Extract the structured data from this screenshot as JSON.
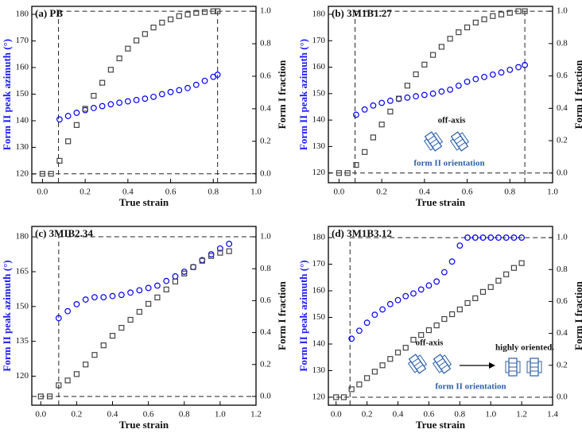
{
  "chart_data": [
    {
      "type": "scatter",
      "title": "(a) PB",
      "xlabel": "True strain",
      "ylabel": "Form II peak azimuth (°)",
      "y2label": "Form I fraction",
      "xlim": [
        -0.05,
        1.0
      ],
      "ylim": [
        116.7,
        183
      ],
      "y2lim": [
        -0.055,
        1.03
      ],
      "xticks": [
        {
          "value": 0,
          "label": "0.0"
        },
        {
          "value": 0.2,
          "label": "0.2"
        },
        {
          "value": 0.4,
          "label": "0.4"
        },
        {
          "value": 0.6,
          "label": "0.6"
        },
        {
          "value": 0.8,
          "label": "0.8"
        },
        {
          "value": 1,
          "label": "1.0"
        }
      ],
      "yticks": [
        120,
        130,
        140,
        150,
        160,
        170,
        180
      ],
      "y2ticks": [
        {
          "value": 0,
          "label": "0.0"
        },
        {
          "value": 0.2,
          "label": "0.2"
        },
        {
          "value": 0.4,
          "label": "0.4"
        },
        {
          "value": 0.6,
          "label": "0.6"
        },
        {
          "value": 0.8,
          "label": "0.8"
        },
        {
          "value": 1,
          "label": "1.0"
        }
      ],
      "ref_x": [
        0.075,
        0.82
      ],
      "ref_y2": [
        0,
        1
      ],
      "x": [
        0,
        0.04,
        0.08,
        0.12,
        0.16,
        0.2,
        0.24,
        0.28,
        0.32,
        0.36,
        0.4,
        0.44,
        0.48,
        0.52,
        0.56,
        0.6,
        0.64,
        0.68,
        0.72,
        0.76,
        0.8,
        0.82
      ],
      "series": [
        {
          "color": "#0000ff",
          "marker": "circle",
          "values": [
            null,
            null,
            140.5,
            141.8,
            143,
            144,
            144.8,
            145.5,
            146.2,
            146.8,
            147.3,
            147.8,
            148.3,
            149,
            150,
            150.8,
            151.5,
            152.3,
            153.5,
            155,
            156.5,
            157.3
          ]
        },
        {
          "color": "#444444",
          "marker": "square",
          "axis": "y2",
          "values": [
            0,
            0,
            0.08,
            0.2,
            0.3,
            0.4,
            0.48,
            0.56,
            0.64,
            0.71,
            0.77,
            0.82,
            0.86,
            0.9,
            0.93,
            0.95,
            0.97,
            0.98,
            0.99,
            0.995,
            1.0,
            1.0
          ]
        }
      ],
      "annotations": []
    },
    {
      "type": "scatter",
      "title": "(b) 3M1B1.27",
      "xlabel": "True strain",
      "ylabel": "Form II peak azimuth (°)",
      "y2label": "Form I fraction",
      "xlim": [
        -0.05,
        1.0
      ],
      "ylim": [
        116.3,
        183
      ],
      "y2lim": [
        -0.06,
        1.03
      ],
      "xticks": [
        {
          "value": 0,
          "label": "0.0"
        },
        {
          "value": 0.2,
          "label": "0.2"
        },
        {
          "value": 0.4,
          "label": "0.4"
        },
        {
          "value": 0.6,
          "label": "0.6"
        },
        {
          "value": 0.8,
          "label": "0.8"
        },
        {
          "value": 1,
          "label": "1.0"
        }
      ],
      "yticks": [
        120,
        130,
        140,
        150,
        160,
        170,
        180
      ],
      "y2ticks": [
        {
          "value": 0,
          "label": "0.0"
        },
        {
          "value": 0.2,
          "label": "0.2"
        },
        {
          "value": 0.4,
          "label": "0.4"
        },
        {
          "value": 0.6,
          "label": "0.6"
        },
        {
          "value": 0.8,
          "label": "0.8"
        },
        {
          "value": 1,
          "label": "1.0"
        }
      ],
      "ref_x": [
        0.075,
        0.87
      ],
      "ref_y2": [
        0,
        1
      ],
      "x": [
        0,
        0.04,
        0.08,
        0.12,
        0.16,
        0.2,
        0.24,
        0.28,
        0.32,
        0.36,
        0.4,
        0.44,
        0.48,
        0.52,
        0.56,
        0.6,
        0.64,
        0.68,
        0.72,
        0.76,
        0.8,
        0.84,
        0.87
      ],
      "series": [
        {
          "color": "#0000ff",
          "marker": "circle",
          "values": [
            null,
            null,
            142,
            144,
            145.5,
            146.5,
            147.3,
            148,
            148.5,
            149,
            149.5,
            150,
            150.8,
            151.5,
            153,
            154.5,
            155.5,
            156.3,
            157.2,
            158,
            159,
            160,
            160.8
          ]
        },
        {
          "color": "#444444",
          "marker": "square",
          "axis": "y2",
          "values": [
            0,
            0,
            0.05,
            0.13,
            0.22,
            0.3,
            0.38,
            0.46,
            0.54,
            0.61,
            0.67,
            0.73,
            0.78,
            0.83,
            0.87,
            0.9,
            0.93,
            0.95,
            0.97,
            0.98,
            0.99,
            1.0,
            1.0
          ]
        }
      ],
      "annotations": [
        "off-axis",
        "form II orientation"
      ]
    },
    {
      "type": "scatter",
      "title": "(c) 3MIB2.34",
      "xlabel": "True strain",
      "ylabel": "Form II peak azimuth (°)",
      "y2label": "Form I fraction",
      "xlim": [
        -0.05,
        1.2
      ],
      "ylim": [
        107.5,
        184.5
      ],
      "y2lim": [
        -0.055,
        1.065
      ],
      "xticks": [
        {
          "value": 0,
          "label": "0.0"
        },
        {
          "value": 0.2,
          "label": "0.2"
        },
        {
          "value": 0.4,
          "label": "0.4"
        },
        {
          "value": 0.6,
          "label": "0.6"
        },
        {
          "value": 0.8,
          "label": "0.8"
        },
        {
          "value": 1,
          "label": "1.0"
        },
        {
          "value": 1.2,
          "label": "1.2"
        }
      ],
      "yticks": [
        120,
        135,
        150,
        165,
        180
      ],
      "y2ticks": [
        {
          "value": 0,
          "label": "0.0"
        },
        {
          "value": 0.2,
          "label": "0.2"
        },
        {
          "value": 0.4,
          "label": "0.4"
        },
        {
          "value": 0.6,
          "label": "0.6"
        },
        {
          "value": 0.8,
          "label": "0.8"
        },
        {
          "value": 1,
          "label": "1.0"
        }
      ],
      "ref_x": [
        0.1
      ],
      "ref_y2": [
        0,
        1
      ],
      "x": [
        0,
        0.05,
        0.1,
        0.15,
        0.2,
        0.25,
        0.3,
        0.35,
        0.4,
        0.45,
        0.5,
        0.55,
        0.6,
        0.65,
        0.7,
        0.75,
        0.8,
        0.85,
        0.9,
        0.95,
        1.0,
        1.05
      ],
      "series": [
        {
          "color": "#0000ff",
          "marker": "circle",
          "values": [
            null,
            null,
            145,
            148,
            151,
            153,
            154,
            154,
            154.5,
            155,
            156,
            157,
            158,
            159,
            161,
            163,
            165,
            167,
            170,
            172.5,
            175,
            177
          ]
        },
        {
          "color": "#444444",
          "marker": "square",
          "axis": "y2",
          "values": [
            0,
            0,
            0.07,
            0.1,
            0.14,
            0.2,
            0.26,
            0.32,
            0.38,
            0.43,
            0.48,
            0.53,
            0.58,
            0.62,
            0.67,
            0.72,
            0.77,
            0.81,
            0.85,
            0.88,
            0.9,
            0.91
          ]
        }
      ],
      "annotations": []
    },
    {
      "type": "scatter",
      "title": "(d) 3M1B3.12",
      "xlabel": "True strain",
      "ylabel": "Form II peak azimuth (°)",
      "y2label": "Form I fraction",
      "xlim": [
        -0.05,
        1.4
      ],
      "ylim": [
        117,
        184.2
      ],
      "y2lim": [
        -0.05,
        1.07
      ],
      "xticks": [
        {
          "value": 0,
          "label": "0.0"
        },
        {
          "value": 0.2,
          "label": "0.2"
        },
        {
          "value": 0.4,
          "label": "0.4"
        },
        {
          "value": 0.6,
          "label": "0.6"
        },
        {
          "value": 0.8,
          "label": "0.8"
        },
        {
          "value": 1,
          "label": "1.0"
        },
        {
          "value": 1.2,
          "label": "1.2"
        },
        {
          "value": 1.4,
          "label": "1.4"
        }
      ],
      "yticks": [
        120,
        130,
        140,
        150,
        160,
        170,
        180
      ],
      "y2ticks": [
        {
          "value": 0,
          "label": "0.0"
        },
        {
          "value": 0.2,
          "label": "0.2"
        },
        {
          "value": 0.4,
          "label": "0.4"
        },
        {
          "value": 0.6,
          "label": "0.6"
        },
        {
          "value": 0.8,
          "label": "0.8"
        },
        {
          "value": 1,
          "label": "1.0"
        }
      ],
      "ref_x": [
        0.09
      ],
      "ref_y2": [
        0,
        1
      ],
      "x": [
        0,
        0.05,
        0.1,
        0.15,
        0.2,
        0.25,
        0.3,
        0.35,
        0.4,
        0.45,
        0.5,
        0.55,
        0.6,
        0.65,
        0.7,
        0.75,
        0.8,
        0.85,
        0.9,
        0.95,
        1.0,
        1.05,
        1.1,
        1.15,
        1.2
      ],
      "series": [
        {
          "color": "#0000ff",
          "marker": "circle",
          "values": [
            null,
            null,
            142,
            145,
            148,
            151,
            153,
            155,
            156.5,
            158,
            159,
            160.5,
            162,
            163.5,
            167,
            171,
            177,
            180,
            180,
            180,
            180,
            180,
            180,
            180,
            180
          ]
        },
        {
          "color": "#444444",
          "marker": "square",
          "axis": "y2",
          "values": [
            0,
            0,
            0.05,
            0.08,
            0.12,
            0.16,
            0.2,
            0.24,
            0.28,
            0.31,
            0.36,
            0.39,
            0.42,
            0.45,
            0.49,
            0.52,
            0.55,
            0.59,
            0.62,
            0.66,
            0.69,
            0.73,
            0.77,
            0.81,
            0.84
          ]
        }
      ],
      "annotations": [
        "off-axis",
        "form II orientation",
        "highly oriented."
      ]
    }
  ]
}
